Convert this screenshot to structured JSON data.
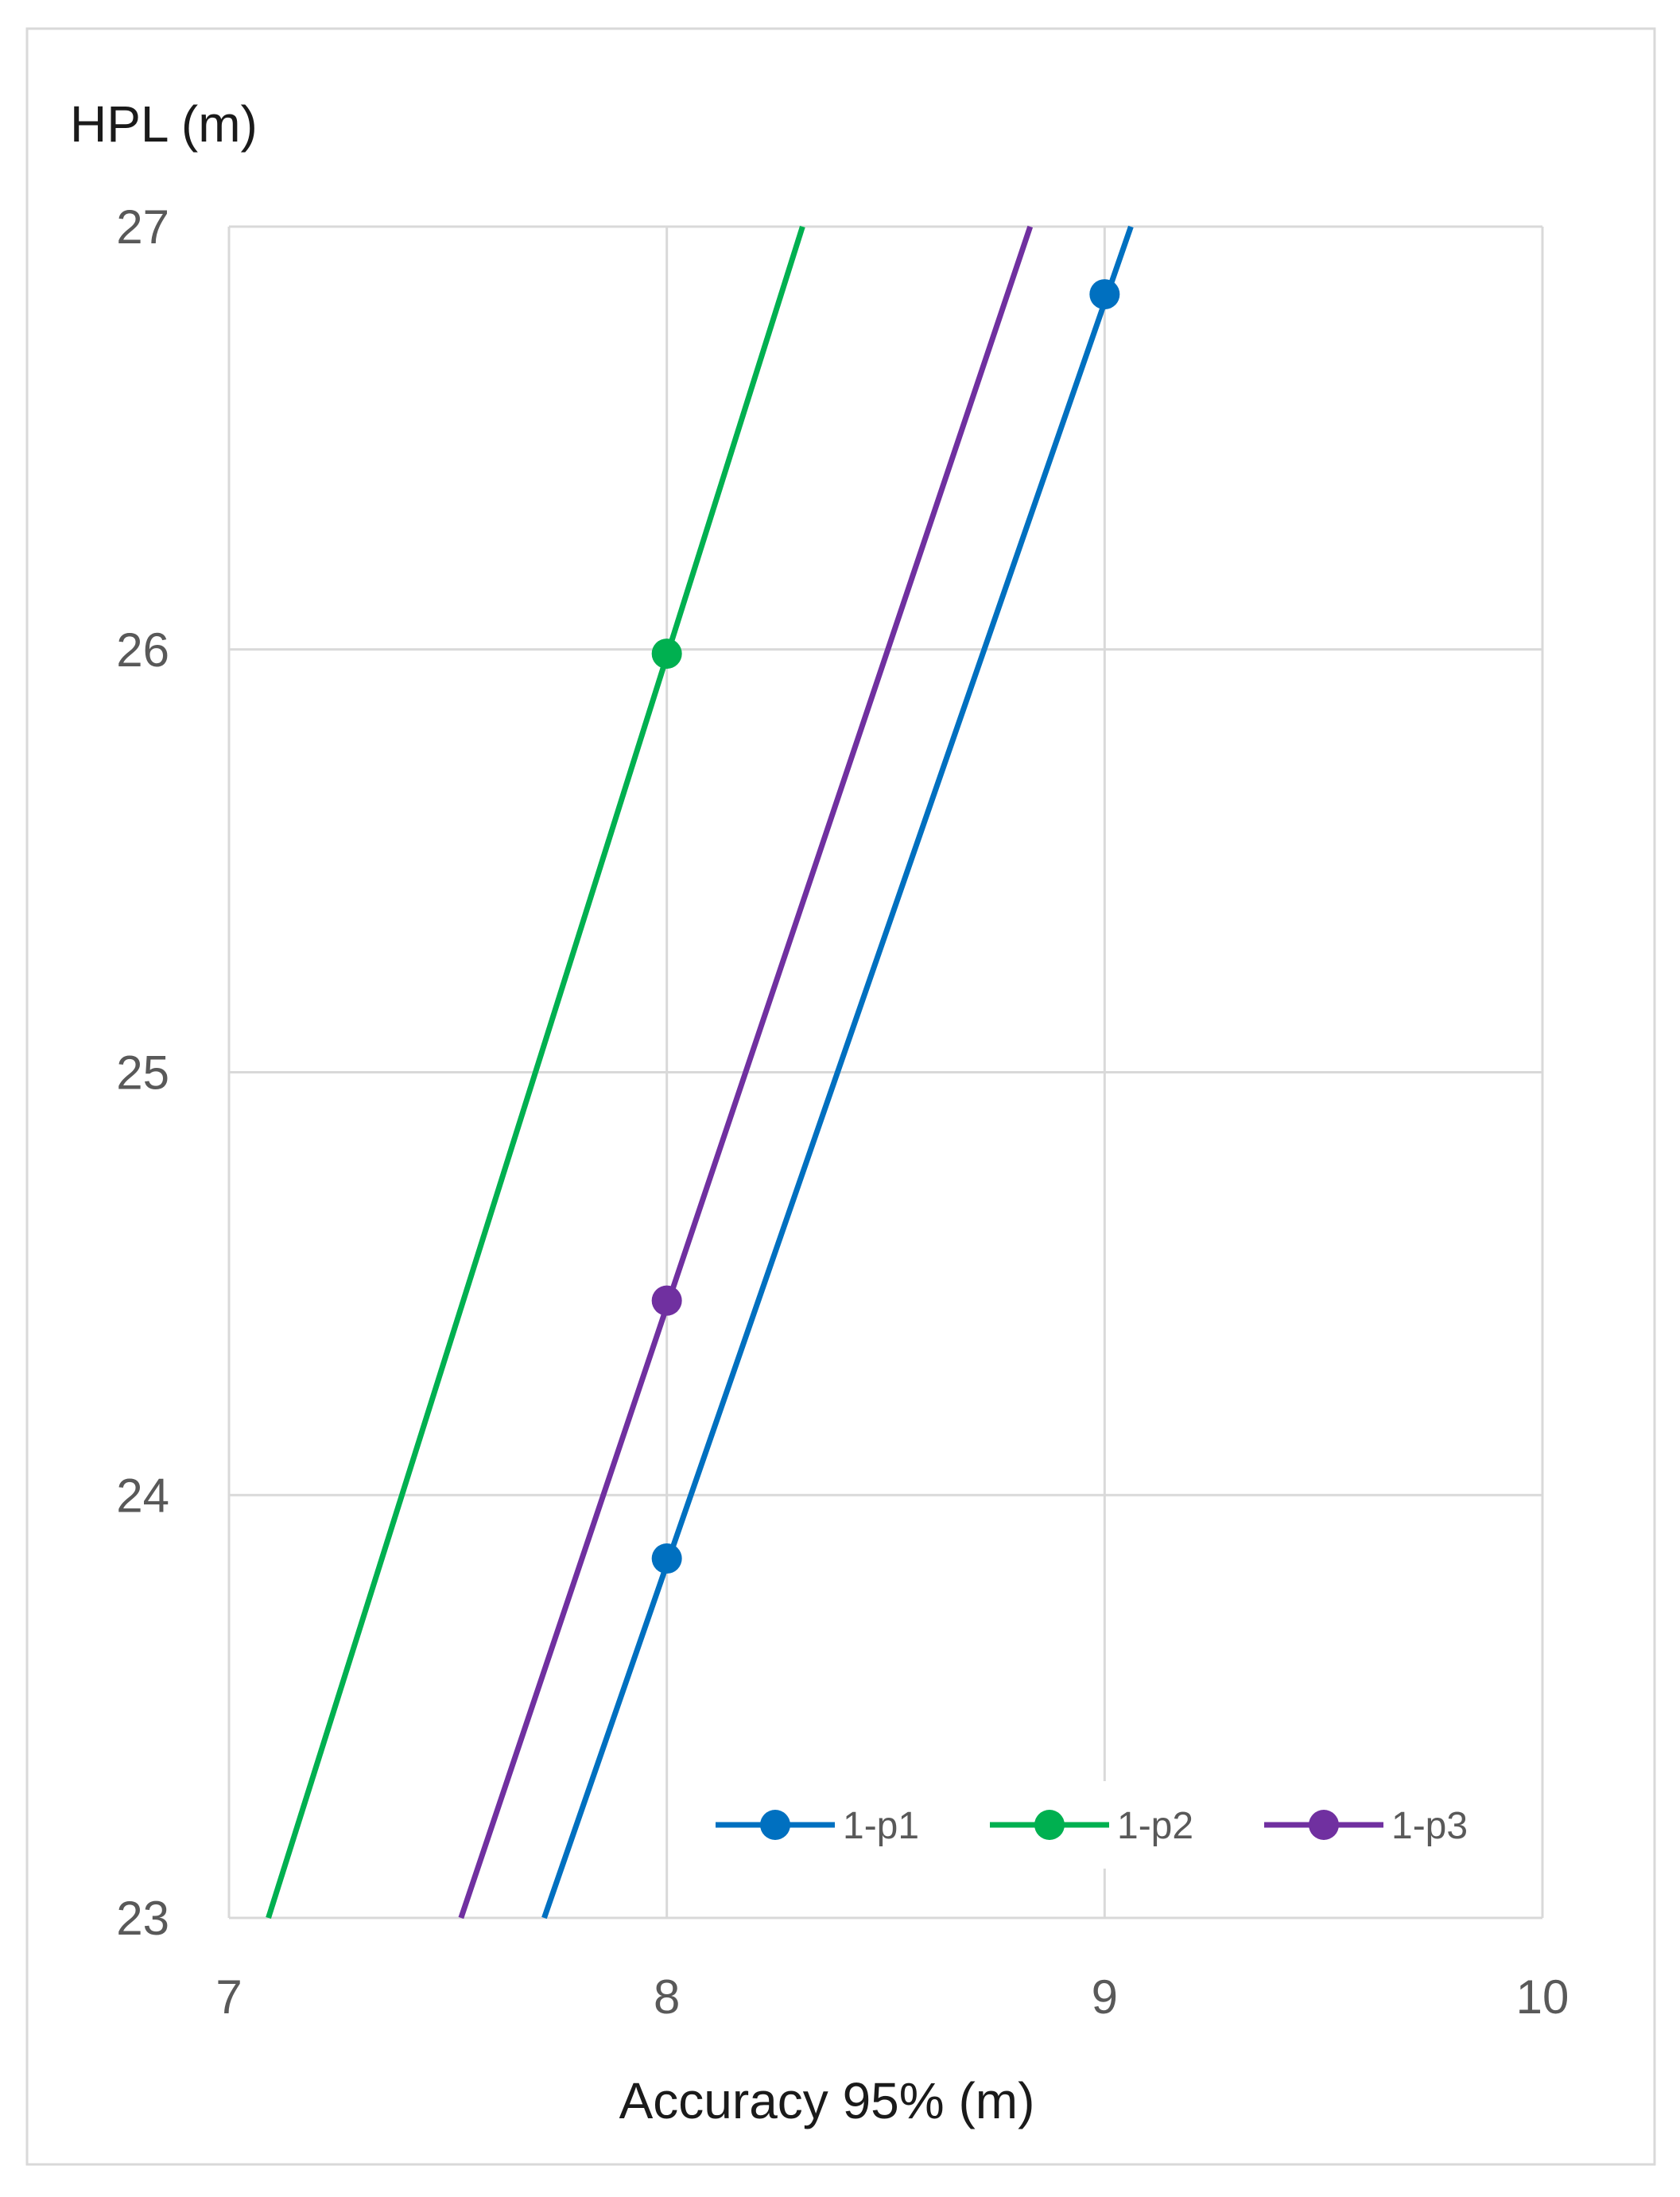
{
  "chart_data": {
    "type": "line",
    "xlabel": "Accuracy 95% (m)",
    "ylabel": "HPL (m)",
    "xlim": [
      7,
      10
    ],
    "ylim": [
      23,
      27
    ],
    "xticks": [
      7,
      8,
      9,
      10
    ],
    "yticks": [
      23,
      24,
      25,
      26,
      27
    ],
    "grid": true,
    "legend_position": "bottom-right",
    "series": [
      {
        "name": "1-p1",
        "color": "#0070C0",
        "line": [
          [
            7.72,
            23.0
          ],
          [
            9.06,
            27.0
          ]
        ],
        "markers": [
          [
            8,
            23.85
          ],
          [
            9,
            26.84
          ]
        ]
      },
      {
        "name": "1-p2",
        "color": "#00B050",
        "line": [
          [
            7.09,
            23.0
          ],
          [
            8.31,
            27.0
          ]
        ],
        "markers": [
          [
            8,
            25.99
          ]
        ]
      },
      {
        "name": "1-p3",
        "color": "#7030A0",
        "line": [
          [
            7.53,
            23.0
          ],
          [
            8.83,
            27.0
          ]
        ],
        "markers": [
          [
            8,
            24.46
          ]
        ]
      }
    ]
  }
}
